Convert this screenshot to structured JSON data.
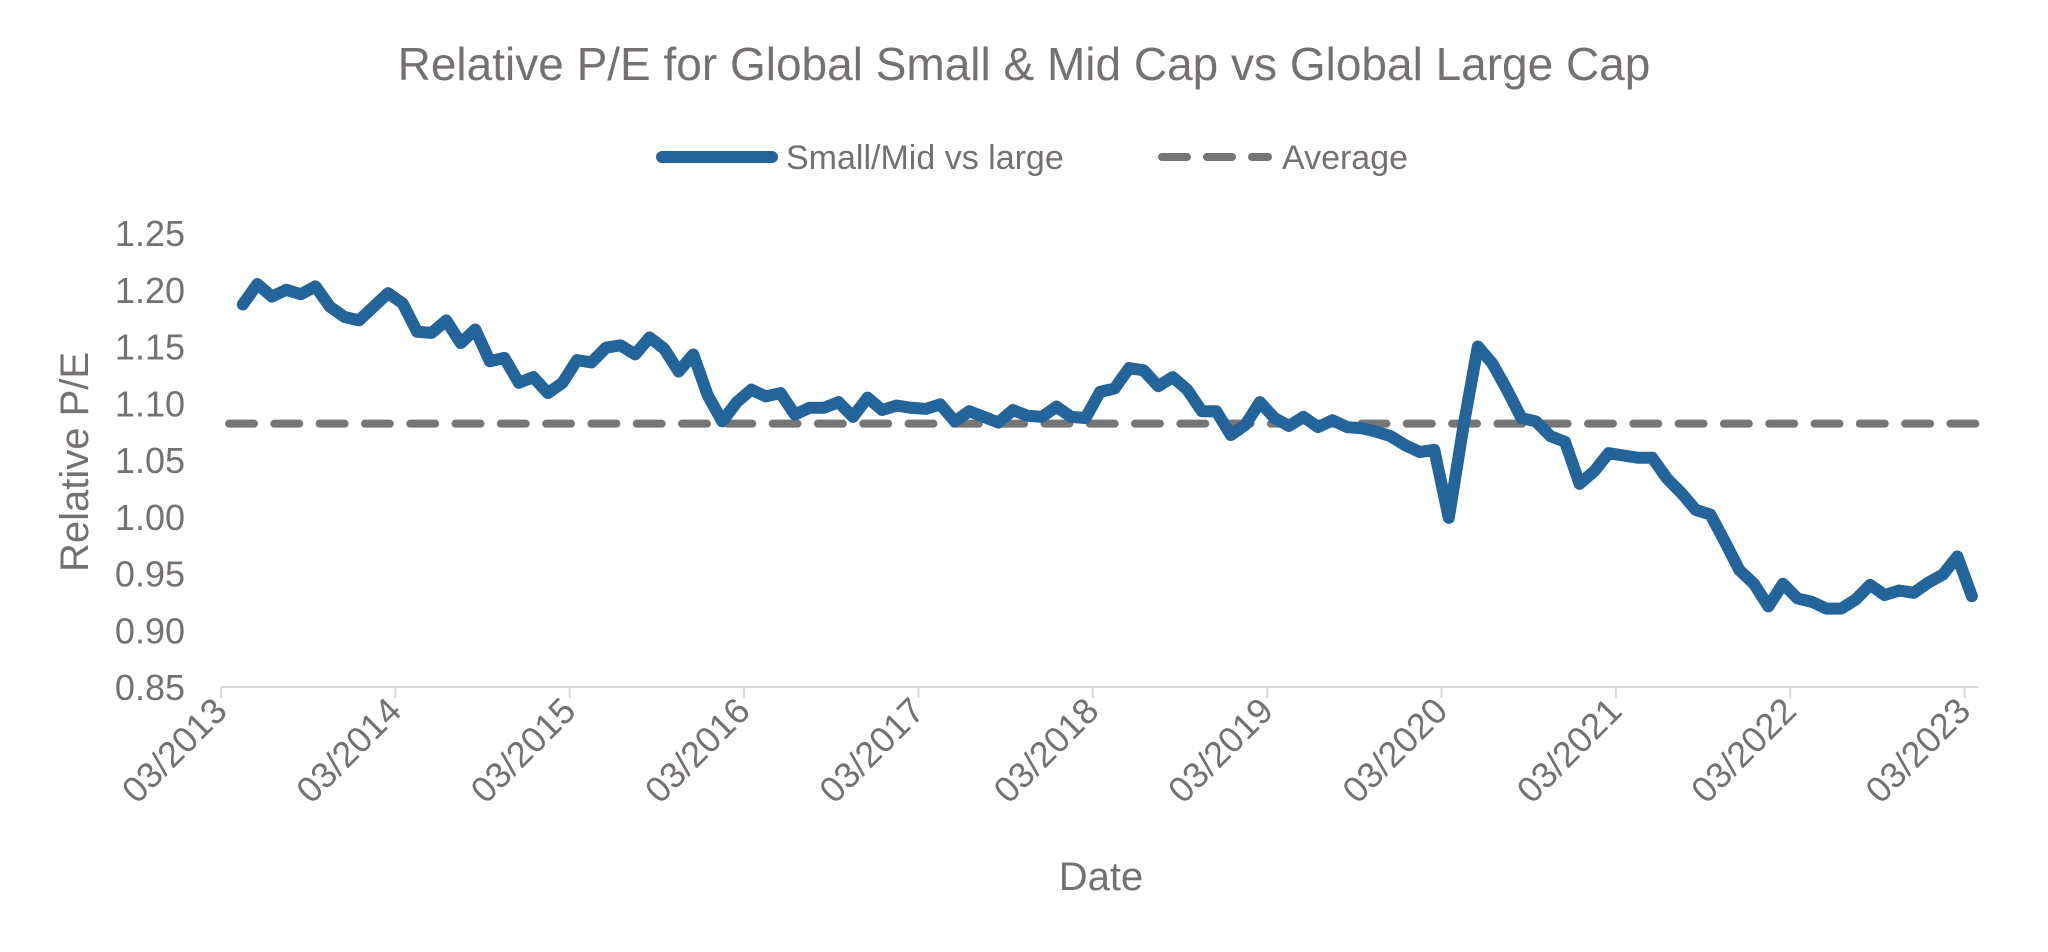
{
  "chart_data": {
    "type": "line",
    "title": "Relative P/E for Global Small & Mid Cap vs Global Large Cap",
    "xlabel": "Date",
    "ylabel": "Relative P/E",
    "ylim": [
      0.85,
      1.25
    ],
    "yticks": [
      "1.25",
      "1.20",
      "1.15",
      "1.10",
      "1.05",
      "1.00",
      "0.95",
      "0.90",
      "0.85"
    ],
    "xticks": [
      "03/2013",
      "03/2014",
      "03/2015",
      "03/2016",
      "03/2017",
      "03/2018",
      "03/2019",
      "03/2020",
      "03/2021",
      "03/2022",
      "03/2023"
    ],
    "x_start": "2013-04",
    "x_frequency": "monthly",
    "x_end": "2023-03",
    "grid": false,
    "legend_position": "top",
    "colors": {
      "series": "#23649a",
      "average": "#767676",
      "text": "#767171",
      "axis": "#d9d9d9"
    },
    "series": [
      {
        "name": "Small/Mid vs large",
        "style": "solid",
        "values": [
          1.187,
          1.205,
          1.194,
          1.2,
          1.196,
          1.203,
          1.185,
          1.176,
          1.173,
          1.185,
          1.197,
          1.188,
          1.163,
          1.162,
          1.173,
          1.153,
          1.165,
          1.137,
          1.14,
          1.118,
          1.123,
          1.109,
          1.118,
          1.138,
          1.136,
          1.149,
          1.151,
          1.143,
          1.158,
          1.148,
          1.128,
          1.143,
          1.107,
          1.084,
          1.101,
          1.112,
          1.106,
          1.109,
          1.09,
          1.096,
          1.096,
          1.101,
          1.088,
          1.105,
          1.094,
          1.098,
          1.096,
          1.095,
          1.099,
          1.084,
          1.093,
          1.088,
          1.083,
          1.094,
          1.089,
          1.088,
          1.097,
          1.088,
          1.087,
          1.11,
          1.113,
          1.131,
          1.129,
          1.115,
          1.123,
          1.112,
          1.093,
          1.093,
          1.072,
          1.081,
          1.101,
          1.087,
          1.08,
          1.088,
          1.079,
          1.085,
          1.079,
          1.078,
          1.075,
          1.071,
          1.063,
          1.057,
          1.059,
          0.999,
          1.079,
          1.15,
          1.135,
          1.112,
          1.087,
          1.084,
          1.071,
          1.066,
          1.029,
          1.04,
          1.056,
          1.054,
          1.052,
          1.052,
          1.034,
          1.021,
          1.006,
          1.002,
          0.978,
          0.953,
          0.941,
          0.921,
          0.941,
          0.928,
          0.925,
          0.919,
          0.919,
          0.927,
          0.94,
          0.931,
          0.935,
          0.933,
          0.942,
          0.949,
          0.965,
          0.93
        ]
      },
      {
        "name": "Average",
        "style": "dashed",
        "value": 1.082
      }
    ]
  }
}
